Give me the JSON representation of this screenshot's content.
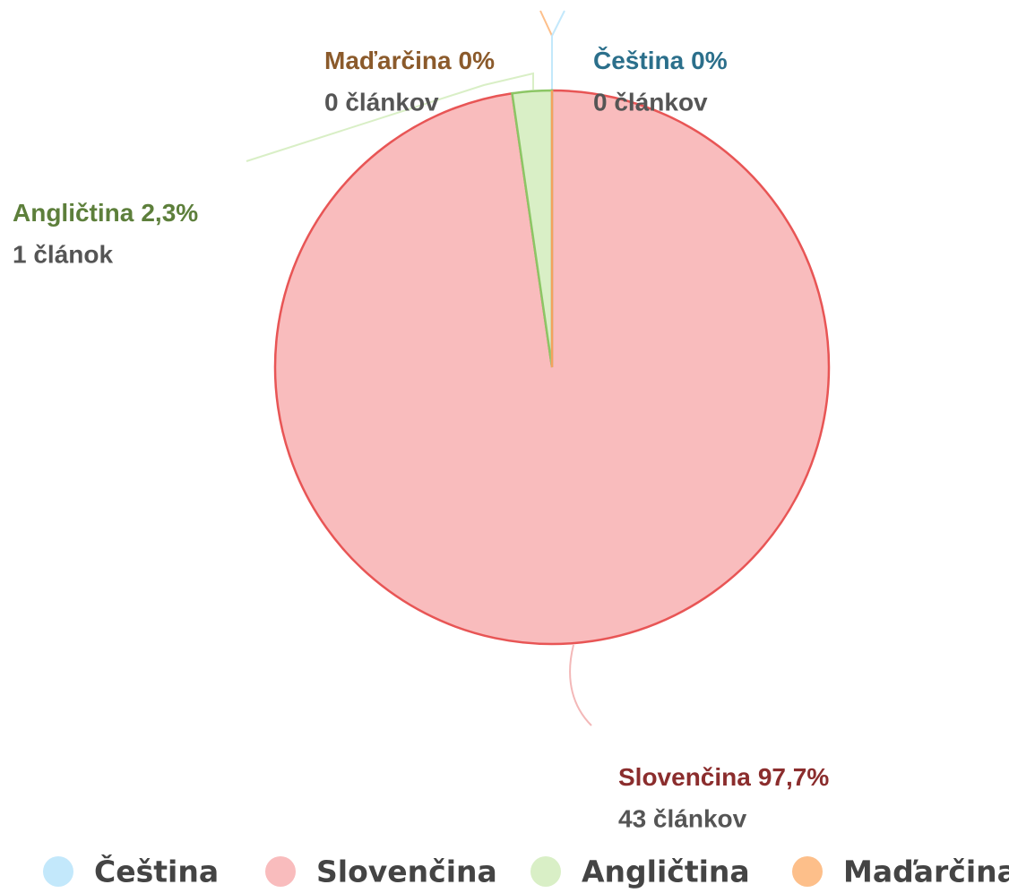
{
  "chart_data": {
    "type": "pie",
    "categories": [
      "Čeština",
      "Slovenčina",
      "Angličtina",
      "Maďarčina"
    ],
    "values": [
      0,
      97.7,
      2.3,
      0
    ],
    "value_labels": [
      "0%",
      "97,7%",
      "2,3%",
      "0%"
    ],
    "count_labels": [
      "0 článkov",
      "43 článkov",
      "1 článok",
      "0 článkov"
    ],
    "colors": [
      "#c3e8fb",
      "#f9bcbd",
      "#d9efc6",
      "#fdbf8a"
    ],
    "stroke_colors": [
      "#9fd8f5",
      "#e85555",
      "#8cc665",
      "#f5a25c"
    ],
    "label_colors": [
      "#2b6f8b",
      "#8b2d2d",
      "#5d7f3b",
      "#8b5a2b"
    ],
    "legend": "bottom"
  }
}
